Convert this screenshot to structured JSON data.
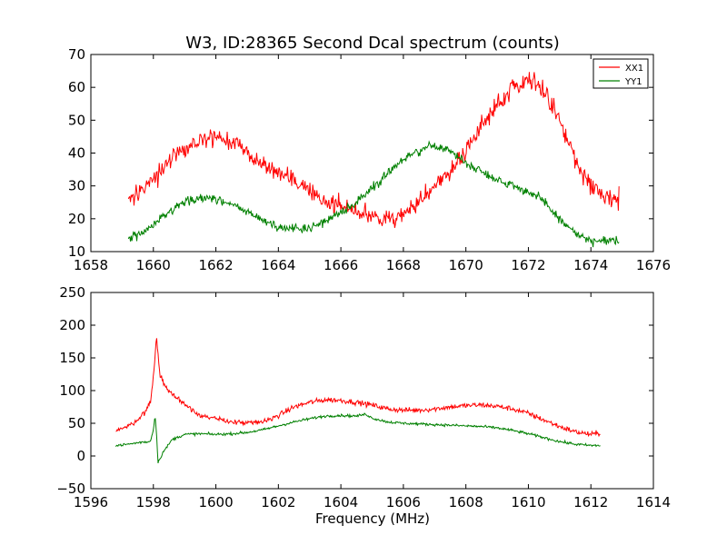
{
  "chart_data": [
    {
      "type": "line",
      "title": "W3, ID:28365 Second Dcal spectrum (counts)",
      "xlabel": "",
      "ylabel": "",
      "xlim": [
        1658,
        1676
      ],
      "ylim": [
        10,
        70
      ],
      "xticks": [
        "1658",
        "1660",
        "1662",
        "1664",
        "1666",
        "1668",
        "1670",
        "1672",
        "1674",
        "1676"
      ],
      "yticks": [
        "10",
        "20",
        "30",
        "40",
        "50",
        "60",
        "70"
      ],
      "grid": false,
      "legend": "top-right",
      "series": [
        {
          "name": "XX1",
          "color": "#ff0000",
          "noise": 2.8,
          "points": [
            [
              1659.2,
              26
            ],
            [
              1659.6,
              28
            ],
            [
              1660.0,
              32
            ],
            [
              1660.4,
              36
            ],
            [
              1660.8,
              40
            ],
            [
              1661.2,
              43
            ],
            [
              1661.6,
              44.5
            ],
            [
              1662.0,
              45
            ],
            [
              1662.4,
              44
            ],
            [
              1662.8,
              42
            ],
            [
              1663.2,
              39
            ],
            [
              1663.6,
              36
            ],
            [
              1664.0,
              34
            ],
            [
              1664.4,
              32
            ],
            [
              1664.8,
              30
            ],
            [
              1665.2,
              27
            ],
            [
              1665.6,
              25
            ],
            [
              1666.0,
              24
            ],
            [
              1666.4,
              23
            ],
            [
              1666.8,
              21
            ],
            [
              1667.2,
              20
            ],
            [
              1667.6,
              20
            ],
            [
              1668.0,
              21
            ],
            [
              1668.4,
              24
            ],
            [
              1668.8,
              28
            ],
            [
              1669.2,
              32
            ],
            [
              1669.6,
              36
            ],
            [
              1670.0,
              41
            ],
            [
              1670.4,
              46
            ],
            [
              1670.8,
              52
            ],
            [
              1671.2,
              57
            ],
            [
              1671.6,
              61
            ],
            [
              1672.0,
              63
            ],
            [
              1672.4,
              60
            ],
            [
              1672.8,
              54
            ],
            [
              1673.2,
              45
            ],
            [
              1673.6,
              36
            ],
            [
              1674.0,
              30
            ],
            [
              1674.4,
              27
            ],
            [
              1674.9,
              26
            ]
          ]
        },
        {
          "name": "YY1",
          "color": "#008000",
          "noise": 1.3,
          "points": [
            [
              1659.2,
              14
            ],
            [
              1659.6,
              15.5
            ],
            [
              1660.0,
              18
            ],
            [
              1660.4,
              21
            ],
            [
              1660.8,
              24
            ],
            [
              1661.2,
              25.5
            ],
            [
              1661.6,
              26.5
            ],
            [
              1662.0,
              26
            ],
            [
              1662.4,
              25
            ],
            [
              1662.8,
              23
            ],
            [
              1663.2,
              21
            ],
            [
              1663.6,
              19
            ],
            [
              1664.0,
              17.5
            ],
            [
              1664.4,
              17
            ],
            [
              1664.8,
              17
            ],
            [
              1665.2,
              18
            ],
            [
              1665.6,
              20
            ],
            [
              1666.0,
              22
            ],
            [
              1666.4,
              24
            ],
            [
              1666.8,
              28
            ],
            [
              1667.2,
              31
            ],
            [
              1667.6,
              35
            ],
            [
              1668.0,
              38
            ],
            [
              1668.4,
              40
            ],
            [
              1668.8,
              42
            ],
            [
              1669.2,
              42
            ],
            [
              1669.6,
              40
            ],
            [
              1670.0,
              37
            ],
            [
              1670.4,
              35
            ],
            [
              1670.8,
              33
            ],
            [
              1671.2,
              31
            ],
            [
              1671.6,
              30
            ],
            [
              1672.0,
              28
            ],
            [
              1672.4,
              26
            ],
            [
              1672.8,
              22
            ],
            [
              1673.2,
              18
            ],
            [
              1673.6,
              15
            ],
            [
              1674.0,
              13
            ],
            [
              1674.4,
              13
            ],
            [
              1674.9,
              13.5
            ]
          ]
        }
      ]
    },
    {
      "type": "line",
      "title": "",
      "xlabel": "Frequency (MHz)",
      "ylabel": "",
      "xlim": [
        1596,
        1614
      ],
      "ylim": [
        -50,
        250
      ],
      "xticks": [
        "1596",
        "1598",
        "1600",
        "1602",
        "1604",
        "1606",
        "1608",
        "1610",
        "1612",
        "1614"
      ],
      "yticks": [
        "−50",
        "0",
        "50",
        "100",
        "150",
        "200",
        "250"
      ],
      "grid": false,
      "legend": "none",
      "series": [
        {
          "name": "XX1",
          "color": "#ff0000",
          "noise": 4,
          "points": [
            [
              1596.8,
              40
            ],
            [
              1597.2,
              45
            ],
            [
              1597.6,
              60
            ],
            [
              1597.9,
              80
            ],
            [
              1598.0,
              120
            ],
            [
              1598.1,
              185
            ],
            [
              1598.2,
              125
            ],
            [
              1598.4,
              105
            ],
            [
              1598.7,
              90
            ],
            [
              1599.0,
              80
            ],
            [
              1599.4,
              65
            ],
            [
              1599.8,
              58
            ],
            [
              1600.2,
              55
            ],
            [
              1600.6,
              52
            ],
            [
              1601.0,
              50
            ],
            [
              1601.5,
              52
            ],
            [
              1602.0,
              62
            ],
            [
              1602.5,
              75
            ],
            [
              1603.0,
              82
            ],
            [
              1603.5,
              86
            ],
            [
              1604.0,
              85
            ],
            [
              1604.5,
              82
            ],
            [
              1605.0,
              78
            ],
            [
              1605.5,
              72
            ],
            [
              1606.0,
              70
            ],
            [
              1606.5,
              70
            ],
            [
              1607.0,
              72
            ],
            [
              1607.5,
              75
            ],
            [
              1608.0,
              77
            ],
            [
              1608.5,
              78
            ],
            [
              1609.0,
              76
            ],
            [
              1609.5,
              72
            ],
            [
              1610.0,
              65
            ],
            [
              1610.5,
              55
            ],
            [
              1611.0,
              45
            ],
            [
              1611.5,
              37
            ],
            [
              1612.0,
              33
            ],
            [
              1612.3,
              35
            ]
          ]
        },
        {
          "name": "YY1",
          "color": "#008000",
          "noise": 2,
          "points": [
            [
              1596.8,
              16
            ],
            [
              1597.2,
              18
            ],
            [
              1597.6,
              21
            ],
            [
              1597.9,
              22
            ],
            [
              1598.0,
              40
            ],
            [
              1598.05,
              63
            ],
            [
              1598.1,
              35
            ],
            [
              1598.15,
              -10
            ],
            [
              1598.3,
              5
            ],
            [
              1598.6,
              25
            ],
            [
              1599.0,
              33
            ],
            [
              1599.5,
              34
            ],
            [
              1600.0,
              33
            ],
            [
              1600.5,
              34
            ],
            [
              1601.0,
              36
            ],
            [
              1601.5,
              40
            ],
            [
              1602.0,
              46
            ],
            [
              1602.5,
              52
            ],
            [
              1603.0,
              57
            ],
            [
              1603.5,
              61
            ],
            [
              1604.0,
              62
            ],
            [
              1604.5,
              61
            ],
            [
              1604.8,
              64
            ],
            [
              1605.0,
              58
            ],
            [
              1605.5,
              52
            ],
            [
              1606.0,
              50
            ],
            [
              1606.5,
              49
            ],
            [
              1607.0,
              48
            ],
            [
              1607.5,
              47
            ],
            [
              1608.0,
              46
            ],
            [
              1608.5,
              45
            ],
            [
              1609.0,
              43
            ],
            [
              1609.5,
              39
            ],
            [
              1610.0,
              34
            ],
            [
              1610.5,
              28
            ],
            [
              1611.0,
              22
            ],
            [
              1611.5,
              18
            ],
            [
              1612.0,
              16
            ],
            [
              1612.3,
              16
            ]
          ]
        }
      ]
    }
  ]
}
